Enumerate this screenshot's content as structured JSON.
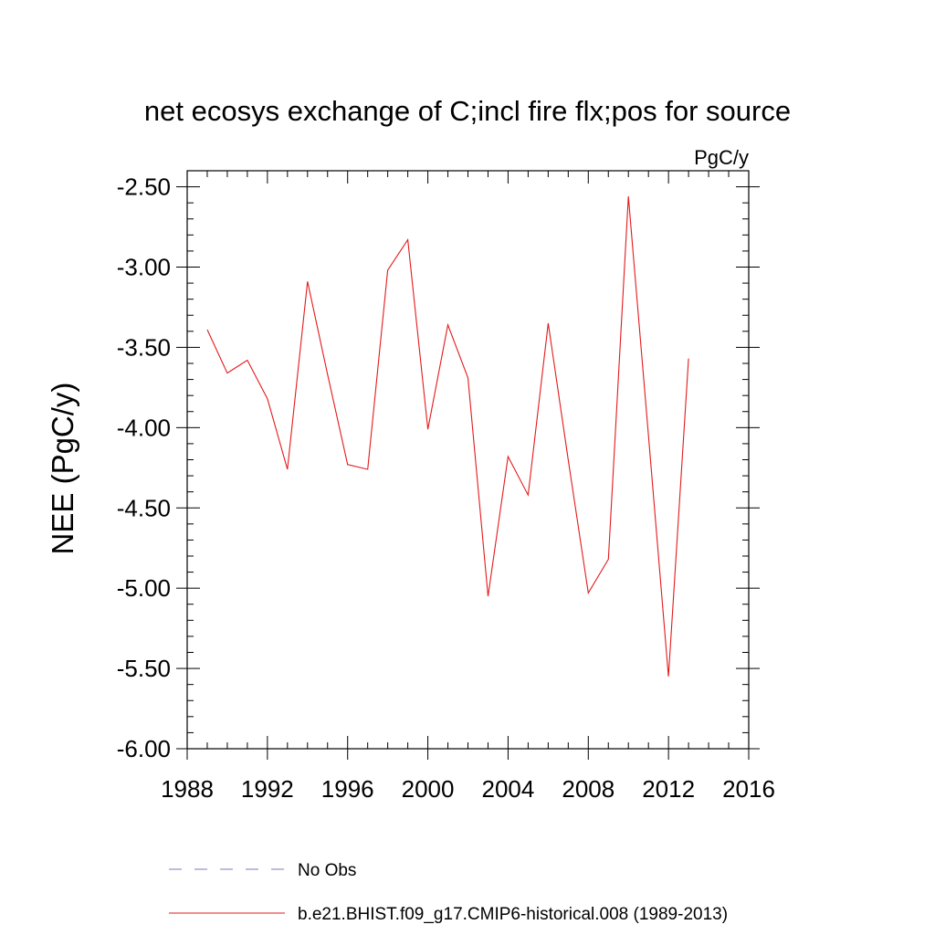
{
  "chart_data": {
    "type": "line",
    "title": "net ecosys exchange of C;incl fire flx;pos for source",
    "units": "PgC/y",
    "ylabel": "NEE  (PgC/y)",
    "xlabel": "",
    "xlim": [
      1988,
      2016
    ],
    "ylim": [
      -6.0,
      -2.4
    ],
    "x_ticks": [
      1988,
      1992,
      1996,
      2000,
      2004,
      2008,
      2012,
      2016
    ],
    "x_tick_labels": [
      "1988",
      "1992",
      "1996",
      "2000",
      "2004",
      "2008",
      "2012",
      "2016"
    ],
    "y_ticks": [
      -2.5,
      -3.0,
      -3.5,
      -4.0,
      -4.5,
      -5.0,
      -5.5,
      -6.0
    ],
    "y_tick_labels": [
      "-2.50",
      "-3.00",
      "-3.50",
      "-4.00",
      "-4.50",
      "-5.00",
      "-5.50",
      "-6.00"
    ],
    "grid": false,
    "legend_position": "bottom",
    "series": [
      {
        "name": "No Obs",
        "color": "#7b78c2",
        "style": "dashed",
        "x": [],
        "y": []
      },
      {
        "name": "b.e21.BHIST.f09_g17.CMIP6-historical.008 (1989-2013)",
        "color": "#e31a1c",
        "style": "solid",
        "x": [
          1989,
          1990,
          1991,
          1992,
          1993,
          1994,
          1995,
          1996,
          1997,
          1998,
          1999,
          2000,
          2001,
          2002,
          2003,
          2004,
          2005,
          2006,
          2007,
          2008,
          2009,
          2010,
          2011,
          2012,
          2013
        ],
        "y": [
          -3.39,
          -3.66,
          -3.58,
          -3.82,
          -4.26,
          -3.09,
          -3.67,
          -4.23,
          -4.26,
          -3.02,
          -2.83,
          -4.01,
          -3.36,
          -3.69,
          -5.05,
          -4.18,
          -4.42,
          -3.35,
          -4.2,
          -5.03,
          -4.82,
          -2.56,
          -4.05,
          -5.55,
          -3.57
        ]
      }
    ]
  }
}
